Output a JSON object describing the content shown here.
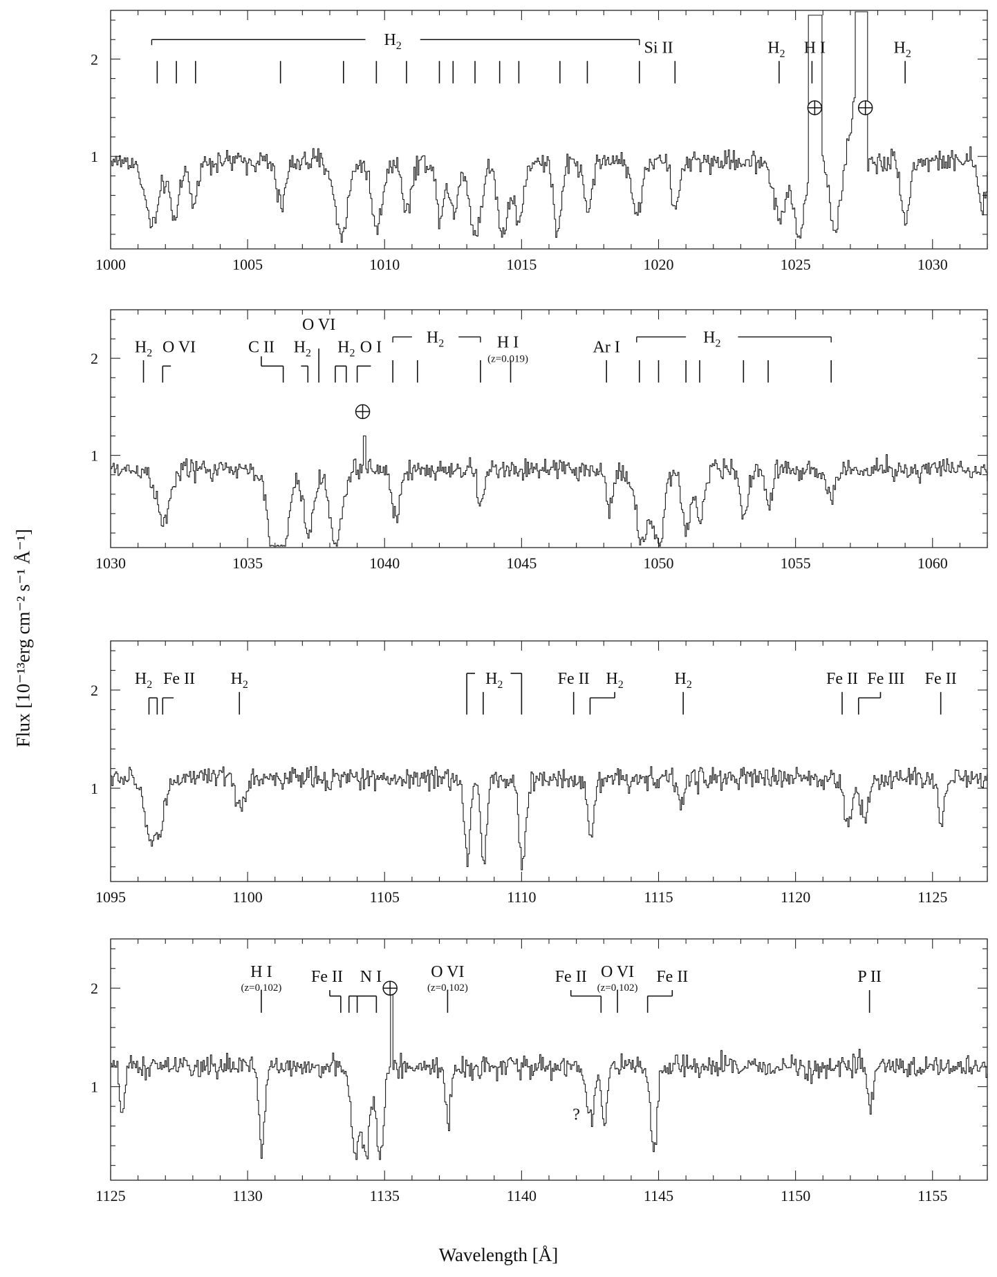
{
  "figure": {
    "ylabel": "Flux [10⁻¹³erg cm⁻² s⁻¹ Å⁻¹]",
    "xlabel": "Wavelength [Å]"
  },
  "chart_data": [
    {
      "type": "line",
      "xlim": [
        1000,
        1032
      ],
      "ylim": [
        0.05,
        2.5
      ],
      "xticks": [
        1000,
        1005,
        1010,
        1015,
        1020,
        1025,
        1030
      ],
      "yticks": [
        1,
        2
      ],
      "continuum": 0.95,
      "absorptions": [
        {
          "x": 1001.5,
          "depth": 0.65,
          "w": 0.55
        },
        {
          "x": 1002.3,
          "depth": 0.6,
          "w": 0.35
        },
        {
          "x": 1003.0,
          "depth": 0.45,
          "w": 0.3
        },
        {
          "x": 1006.2,
          "depth": 0.45,
          "w": 0.35
        },
        {
          "x": 1008.4,
          "depth": 0.75,
          "w": 0.5
        },
        {
          "x": 1009.7,
          "depth": 0.7,
          "w": 0.4
        },
        {
          "x": 1010.8,
          "depth": 0.5,
          "w": 0.35
        },
        {
          "x": 1012.0,
          "depth": 0.55,
          "w": 0.3
        },
        {
          "x": 1012.5,
          "depth": 0.55,
          "w": 0.3
        },
        {
          "x": 1013.3,
          "depth": 0.75,
          "w": 0.45
        },
        {
          "x": 1014.3,
          "depth": 0.75,
          "w": 0.4
        },
        {
          "x": 1014.9,
          "depth": 0.6,
          "w": 0.35
        },
        {
          "x": 1016.3,
          "depth": 0.75,
          "w": 0.3
        },
        {
          "x": 1017.4,
          "depth": 0.5,
          "w": 0.3
        },
        {
          "x": 1019.2,
          "depth": 0.55,
          "w": 0.35
        },
        {
          "x": 1020.6,
          "depth": 0.5,
          "w": 0.3
        },
        {
          "x": 1024.4,
          "depth": 0.6,
          "w": 0.45
        },
        {
          "x": 1025.1,
          "depth": 0.8,
          "w": 0.4
        },
        {
          "x": 1026.4,
          "depth": 0.7,
          "w": 0.35
        },
        {
          "x": 1029.0,
          "depth": 0.6,
          "w": 0.3
        },
        {
          "x": 1031.8,
          "depth": 0.5,
          "w": 0.3
        }
      ],
      "emissions": [
        {
          "x1": 1025.45,
          "x2": 1025.95,
          "y": 2.45
        },
        {
          "x1": 1027.15,
          "x2": 1027.6,
          "y": 2.5
        }
      ],
      "ramps": [
        {
          "x1": 1026.5,
          "x2": 1027.15,
          "y1": 0.35,
          "y2": 1.6
        }
      ],
      "brackets": [
        {
          "x1": 1001.5,
          "x2": 1019.3,
          "y": 2.2,
          "label": "H2",
          "gap": [
            1009.3,
            1011.3
          ],
          "end_ticks": true
        }
      ],
      "markers": [
        {
          "x": 1001.7,
          "y1": 1.75,
          "y2": 1.98
        },
        {
          "x": 1002.4,
          "y1": 1.75,
          "y2": 1.98
        },
        {
          "x": 1003.1,
          "y1": 1.75,
          "y2": 1.98
        },
        {
          "x": 1006.2,
          "y1": 1.75,
          "y2": 1.98
        },
        {
          "x": 1008.5,
          "y1": 1.75,
          "y2": 1.98
        },
        {
          "x": 1009.7,
          "y1": 1.75,
          "y2": 1.98
        },
        {
          "x": 1010.8,
          "y1": 1.75,
          "y2": 1.98
        },
        {
          "x": 1012.0,
          "y1": 1.75,
          "y2": 1.98
        },
        {
          "x": 1012.5,
          "y1": 1.75,
          "y2": 1.98
        },
        {
          "x": 1013.3,
          "y1": 1.75,
          "y2": 1.98
        },
        {
          "x": 1014.2,
          "y1": 1.75,
          "y2": 1.98
        },
        {
          "x": 1014.9,
          "y1": 1.75,
          "y2": 1.98
        },
        {
          "x": 1016.4,
          "y1": 1.75,
          "y2": 1.98
        },
        {
          "x": 1017.4,
          "y1": 1.75,
          "y2": 1.98
        },
        {
          "x": 1019.3,
          "y1": 1.75,
          "y2": 1.98
        },
        {
          "x": 1020.6,
          "y1": 1.75,
          "y2": 1.98
        },
        {
          "x": 1024.4,
          "y1": 1.75,
          "y2": 1.98
        },
        {
          "x": 1025.6,
          "y1": 1.75,
          "y2": 1.98
        },
        {
          "x": 1029.0,
          "y1": 1.75,
          "y2": 1.98
        }
      ],
      "labels": [
        {
          "x": 1020.0,
          "y": 2.12,
          "text": "Si II"
        },
        {
          "x": 1024.3,
          "y": 2.12,
          "text": "H2"
        },
        {
          "x": 1025.7,
          "y": 2.12,
          "text": "H I"
        },
        {
          "x": 1028.9,
          "y": 2.12,
          "text": "H2"
        }
      ],
      "earth_symbols": [
        {
          "x": 1025.7,
          "y": 1.5
        },
        {
          "x": 1027.55,
          "y": 1.5
        }
      ]
    },
    {
      "type": "line",
      "xlim": [
        1030,
        1062
      ],
      "ylim": [
        0.05,
        2.5
      ],
      "xticks": [
        1030,
        1035,
        1040,
        1045,
        1050,
        1055,
        1060
      ],
      "yticks": [
        1,
        2
      ],
      "continuum": 0.85,
      "absorptions": [
        {
          "x": 1031.9,
          "depth": 0.55,
          "w": 0.5
        },
        {
          "x": 1035.9,
          "depth": 0.8,
          "w": 0.45
        },
        {
          "x": 1036.3,
          "depth": 0.75,
          "w": 0.45
        },
        {
          "x": 1037.2,
          "depth": 0.65,
          "w": 0.4
        },
        {
          "x": 1038.2,
          "depth": 0.8,
          "w": 0.45
        },
        {
          "x": 1040.4,
          "depth": 0.5,
          "w": 0.3
        },
        {
          "x": 1043.5,
          "depth": 0.35,
          "w": 0.25
        },
        {
          "x": 1048.2,
          "depth": 0.4,
          "w": 0.25
        },
        {
          "x": 1049.4,
          "depth": 0.75,
          "w": 0.5
        },
        {
          "x": 1050.0,
          "depth": 0.75,
          "w": 0.4
        },
        {
          "x": 1051.0,
          "depth": 0.65,
          "w": 0.3
        },
        {
          "x": 1051.5,
          "depth": 0.55,
          "w": 0.3
        },
        {
          "x": 1053.1,
          "depth": 0.45,
          "w": 0.3
        },
        {
          "x": 1054.0,
          "depth": 0.35,
          "w": 0.25
        },
        {
          "x": 1056.3,
          "depth": 0.35,
          "w": 0.25
        }
      ],
      "emissions": [
        {
          "x1": 1039.2,
          "x2": 1039.3,
          "y": 1.2
        }
      ],
      "ramps": [],
      "brackets": [
        {
          "x1": 1049.2,
          "x2": 1056.3,
          "y": 2.22,
          "label": "H2",
          "gap": [
            1051.0,
            1052.9
          ],
          "end_ticks": true
        },
        {
          "x1": 1040.3,
          "x2": 1043.5,
          "y": 2.22,
          "label": "H2",
          "gap": [
            1041.0,
            1042.7
          ],
          "end_ticks": true
        }
      ],
      "markers": [
        {
          "x": 1031.2,
          "y1": 1.75,
          "y2": 1.98
        },
        {
          "x": 1031.9,
          "y1": 1.75,
          "y2": 1.92,
          "hook": 1032.2
        },
        {
          "x": 1036.3,
          "y1": 1.75,
          "y2": 1.92,
          "hook": 1035.5
        },
        {
          "x": 1035.5,
          "y1": 1.92,
          "y2": 2.02
        },
        {
          "x": 1037.2,
          "y1": 1.75,
          "y2": 1.92,
          "hook": 1036.95
        },
        {
          "x": 1037.6,
          "y1": 1.75,
          "y2": 2.1
        },
        {
          "x": 1038.2,
          "y1": 1.75,
          "y2": 1.92,
          "hook": 1038.6
        },
        {
          "x": 1038.6,
          "y1": 1.75,
          "y2": 1.92
        },
        {
          "x": 1039.0,
          "y1": 1.75,
          "y2": 1.92,
          "hook": 1039.5
        },
        {
          "x": 1040.3,
          "y1": 1.75,
          "y2": 1.98
        },
        {
          "x": 1041.2,
          "y1": 1.75,
          "y2": 1.98
        },
        {
          "x": 1043.5,
          "y1": 1.75,
          "y2": 1.98
        },
        {
          "x": 1044.6,
          "y1": 1.75,
          "y2": 1.98
        },
        {
          "x": 1048.1,
          "y1": 1.75,
          "y2": 1.98
        },
        {
          "x": 1049.3,
          "y1": 1.75,
          "y2": 1.98
        },
        {
          "x": 1050.0,
          "y1": 1.75,
          "y2": 1.98
        },
        {
          "x": 1051.0,
          "y1": 1.75,
          "y2": 1.98
        },
        {
          "x": 1051.5,
          "y1": 1.75,
          "y2": 1.98
        },
        {
          "x": 1053.1,
          "y1": 1.75,
          "y2": 1.98
        },
        {
          "x": 1054.0,
          "y1": 1.75,
          "y2": 1.98
        },
        {
          "x": 1056.3,
          "y1": 1.75,
          "y2": 1.98
        }
      ],
      "labels": [
        {
          "x": 1031.2,
          "y": 2.12,
          "text": "H2"
        },
        {
          "x": 1032.5,
          "y": 2.12,
          "text": "O VI"
        },
        {
          "x": 1035.5,
          "y": 2.12,
          "text": "C II"
        },
        {
          "x": 1037.0,
          "y": 2.12,
          "text": "H2"
        },
        {
          "x": 1037.6,
          "y": 2.35,
          "text": "O VI"
        },
        {
          "x": 1038.6,
          "y": 2.12,
          "text": "H2"
        },
        {
          "x": 1039.5,
          "y": 2.12,
          "text": "O I"
        },
        {
          "x": 1044.5,
          "y": 2.17,
          "text": "H I"
        },
        {
          "x": 1044.5,
          "y": 2.02,
          "text": "(z=0.019)",
          "small": true
        },
        {
          "x": 1048.1,
          "y": 2.12,
          "text": "Ar I"
        }
      ],
      "earth_symbols": [
        {
          "x": 1039.2,
          "y": 1.45
        }
      ]
    },
    {
      "type": "line",
      "xlim": [
        1095,
        1127
      ],
      "ylim": [
        0.05,
        2.5
      ],
      "xticks": [
        1095,
        1100,
        1105,
        1110,
        1115,
        1120,
        1125
      ],
      "yticks": [
        1,
        2
      ],
      "continuum": 1.1,
      "absorptions": [
        {
          "x": 1096.4,
          "depth": 0.55,
          "w": 0.45
        },
        {
          "x": 1096.8,
          "depth": 0.45,
          "w": 0.35
        },
        {
          "x": 1099.7,
          "depth": 0.3,
          "w": 0.35
        },
        {
          "x": 1108.0,
          "depth": 0.85,
          "w": 0.22
        },
        {
          "x": 1108.6,
          "depth": 0.85,
          "w": 0.22
        },
        {
          "x": 1110.0,
          "depth": 0.95,
          "w": 0.25
        },
        {
          "x": 1112.5,
          "depth": 0.65,
          "w": 0.22
        },
        {
          "x": 1115.8,
          "depth": 0.25,
          "w": 0.25
        },
        {
          "x": 1121.9,
          "depth": 0.5,
          "w": 0.3
        },
        {
          "x": 1122.5,
          "depth": 0.4,
          "w": 0.3
        },
        {
          "x": 1125.3,
          "depth": 0.5,
          "w": 0.2
        }
      ],
      "emissions": [],
      "ramps": [],
      "brackets": [],
      "markers": [
        {
          "x": 1096.4,
          "y1": 1.75,
          "y2": 1.92,
          "hook": 1096.7
        },
        {
          "x": 1096.7,
          "y1": 1.75,
          "y2": 1.92
        },
        {
          "x": 1096.9,
          "y1": 1.75,
          "y2": 1.92,
          "hook": 1097.3
        },
        {
          "x": 1099.7,
          "y1": 1.75,
          "y2": 1.98
        },
        {
          "x": 1108.0,
          "y1": 1.75,
          "y2": 2.17,
          "hook": 1108.3
        },
        {
          "x": 1108.6,
          "y1": 1.75,
          "y2": 1.98
        },
        {
          "x": 1110.0,
          "y1": 1.75,
          "y2": 2.17,
          "hook": 1109.6
        },
        {
          "x": 1111.9,
          "y1": 1.75,
          "y2": 1.98
        },
        {
          "x": 1112.5,
          "y1": 1.75,
          "y2": 1.92,
          "hook": 1113.4
        },
        {
          "x": 1113.4,
          "y1": 1.92,
          "y2": 1.98
        },
        {
          "x": 1115.9,
          "y1": 1.75,
          "y2": 1.98
        },
        {
          "x": 1121.7,
          "y1": 1.75,
          "y2": 1.98
        },
        {
          "x": 1122.3,
          "y1": 1.75,
          "y2": 1.92,
          "hook": 1123.1
        },
        {
          "x": 1123.1,
          "y1": 1.92,
          "y2": 1.98
        },
        {
          "x": 1125.3,
          "y1": 1.75,
          "y2": 1.98
        }
      ],
      "labels": [
        {
          "x": 1096.2,
          "y": 2.12,
          "text": "H2"
        },
        {
          "x": 1097.5,
          "y": 2.12,
          "text": "Fe II"
        },
        {
          "x": 1099.7,
          "y": 2.12,
          "text": "H2"
        },
        {
          "x": 1109.0,
          "y": 2.12,
          "text": "H2"
        },
        {
          "x": 1111.9,
          "y": 2.12,
          "text": "Fe II"
        },
        {
          "x": 1113.4,
          "y": 2.12,
          "text": "H2"
        },
        {
          "x": 1115.9,
          "y": 2.12,
          "text": "H2"
        },
        {
          "x": 1121.7,
          "y": 2.12,
          "text": "Fe II"
        },
        {
          "x": 1123.3,
          "y": 2.12,
          "text": "Fe III"
        },
        {
          "x": 1125.3,
          "y": 2.12,
          "text": "Fe II"
        }
      ],
      "earth_symbols": []
    },
    {
      "type": "line",
      "xlim": [
        1125,
        1157
      ],
      "ylim": [
        0.05,
        2.5
      ],
      "xticks": [
        1125,
        1130,
        1135,
        1140,
        1145,
        1150,
        1155
      ],
      "yticks": [
        1,
        2
      ],
      "continuum": 1.2,
      "absorptions": [
        {
          "x": 1125.4,
          "depth": 0.45,
          "w": 0.2
        },
        {
          "x": 1130.5,
          "depth": 0.85,
          "w": 0.2
        },
        {
          "x": 1133.9,
          "depth": 0.9,
          "w": 0.3
        },
        {
          "x": 1134.3,
          "depth": 0.85,
          "w": 0.3
        },
        {
          "x": 1134.8,
          "depth": 0.9,
          "w": 0.3
        },
        {
          "x": 1137.3,
          "depth": 0.55,
          "w": 0.2
        },
        {
          "x": 1142.5,
          "depth": 0.5,
          "w": 0.3
        },
        {
          "x": 1143.0,
          "depth": 0.6,
          "w": 0.2
        },
        {
          "x": 1144.8,
          "depth": 0.9,
          "w": 0.25
        },
        {
          "x": 1152.7,
          "depth": 0.45,
          "w": 0.2
        }
      ],
      "emissions": [
        {
          "x1": 1135.2,
          "x2": 1135.3,
          "y": 1.95
        }
      ],
      "ramps": [],
      "brackets": [],
      "markers": [
        {
          "x": 1130.5,
          "y1": 1.75,
          "y2": 1.98
        },
        {
          "x": 1133.4,
          "y1": 1.75,
          "y2": 1.92,
          "hook": 1133.0
        },
        {
          "x": 1133.0,
          "y1": 1.92,
          "y2": 1.98
        },
        {
          "x": 1133.7,
          "y1": 1.75,
          "y2": 1.92,
          "hook": 1134.0
        },
        {
          "x": 1134.0,
          "y1": 1.75,
          "y2": 1.92,
          "hook": 1134.4
        },
        {
          "x": 1134.7,
          "y1": 1.75,
          "y2": 1.92,
          "hook": 1134.4
        },
        {
          "x": 1137.3,
          "y1": 1.75,
          "y2": 1.98
        },
        {
          "x": 1142.9,
          "y1": 1.75,
          "y2": 1.92,
          "hook": 1141.8
        },
        {
          "x": 1141.8,
          "y1": 1.92,
          "y2": 1.98
        },
        {
          "x": 1143.5,
          "y1": 1.75,
          "y2": 1.98
        },
        {
          "x": 1144.6,
          "y1": 1.75,
          "y2": 1.92,
          "hook": 1145.5
        },
        {
          "x": 1145.5,
          "y1": 1.92,
          "y2": 1.98
        },
        {
          "x": 1152.7,
          "y1": 1.75,
          "y2": 1.98
        }
      ],
      "labels": [
        {
          "x": 1130.5,
          "y": 2.17,
          "text": "H I"
        },
        {
          "x": 1130.5,
          "y": 2.03,
          "text": "(z=0.102)",
          "small": true
        },
        {
          "x": 1132.9,
          "y": 2.12,
          "text": "Fe II"
        },
        {
          "x": 1134.5,
          "y": 2.12,
          "text": "N I"
        },
        {
          "x": 1137.3,
          "y": 2.17,
          "text": "O VI"
        },
        {
          "x": 1137.3,
          "y": 2.03,
          "text": "(z=0.102)",
          "small": true
        },
        {
          "x": 1141.8,
          "y": 2.12,
          "text": "Fe II"
        },
        {
          "x": 1143.5,
          "y": 2.17,
          "text": "O VI"
        },
        {
          "x": 1143.5,
          "y": 2.03,
          "text": "(z=0.102)",
          "small": true
        },
        {
          "x": 1145.5,
          "y": 2.12,
          "text": "Fe II"
        },
        {
          "x": 1152.7,
          "y": 2.12,
          "text": "P II"
        },
        {
          "x": 1142.0,
          "y": 0.72,
          "text": "?"
        }
      ],
      "earth_symbols": [
        {
          "x": 1135.2,
          "y": 2.0
        }
      ]
    }
  ]
}
